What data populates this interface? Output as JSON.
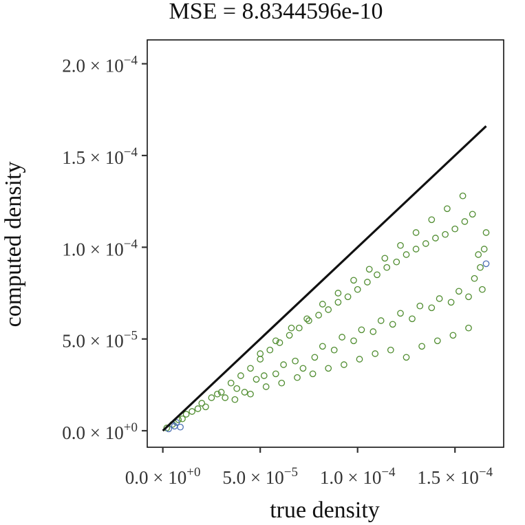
{
  "chart_data": {
    "type": "scatter",
    "title": "MSE = 8.8344596e-10",
    "xlabel": "true density",
    "ylabel": "computed density",
    "xlim": [
      -8e-06,
      0.000175
    ],
    "ylim": [
      -9e-06,
      0.000213
    ],
    "x_ticks": [
      {
        "value": 0,
        "mantissa": "0.0",
        "exponent": "+0"
      },
      {
        "value": 5e-05,
        "mantissa": "5.0",
        "exponent": "−5"
      },
      {
        "value": 0.0001,
        "mantissa": "1.0",
        "exponent": "−4"
      },
      {
        "value": 0.00015,
        "mantissa": "1.5",
        "exponent": "−4"
      }
    ],
    "y_ticks": [
      {
        "value": 0,
        "mantissa": "0.0",
        "exponent": "+0"
      },
      {
        "value": 5e-05,
        "mantissa": "5.0",
        "exponent": "−5"
      },
      {
        "value": 0.0001,
        "mantissa": "1.0",
        "exponent": "−4"
      },
      {
        "value": 0.00015,
        "mantissa": "1.5",
        "exponent": "−4"
      },
      {
        "value": 0.0002,
        "mantissa": "2.0",
        "exponent": "−4"
      }
    ],
    "reference_line": {
      "from": [
        0,
        0
      ],
      "to": [
        0.000166,
        0.000166
      ],
      "color": "#111111"
    },
    "series": [
      {
        "color": "#4f8c2f",
        "marker": "open-circle",
        "points": [
          [
            2e-06,
            1.5e-06
          ],
          [
            5e-06,
            3.5e-06
          ],
          [
            8e-06,
            6e-06
          ],
          [
            1e-05,
            6.5e-06
          ],
          [
            1.2e-05,
            9e-06
          ],
          [
            1.5e-05,
            1.05e-05
          ],
          [
            1.8e-05,
            1.2e-05
          ],
          [
            2e-05,
            1.5e-05
          ],
          [
            2.2e-05,
            1.3e-05
          ],
          [
            2.5e-05,
            1.8e-05
          ],
          [
            2.8e-05,
            2e-05
          ],
          [
            3e-05,
            2.1e-05
          ],
          [
            3.2e-05,
            1.8e-05
          ],
          [
            3.5e-05,
            2.6e-05
          ],
          [
            3.8e-05,
            2.3e-05
          ],
          [
            4e-05,
            3e-05
          ],
          [
            4.2e-05,
            2.1e-05
          ],
          [
            4.5e-05,
            3.4e-05
          ],
          [
            4.8e-05,
            2.8e-05
          ],
          [
            5e-05,
            3.9e-05
          ],
          [
            5.2e-05,
            3e-05
          ],
          [
            5.5e-05,
            4.4e-05
          ],
          [
            5.8e-05,
            3.1e-05
          ],
          [
            6e-05,
            4.8e-05
          ],
          [
            6.2e-05,
            3.6e-05
          ],
          [
            6.5e-05,
            5.2e-05
          ],
          [
            6.8e-05,
            3.8e-05
          ],
          [
            7e-05,
            5.6e-05
          ],
          [
            7.2e-05,
            3.4e-05
          ],
          [
            7.5e-05,
            6e-05
          ],
          [
            7.8e-05,
            4e-05
          ],
          [
            8e-05,
            6.3e-05
          ],
          [
            8.2e-05,
            4.6e-05
          ],
          [
            8.5e-05,
            6.6e-05
          ],
          [
            8.8e-05,
            4.4e-05
          ],
          [
            9e-05,
            7e-05
          ],
          [
            9.2e-05,
            5.1e-05
          ],
          [
            9.5e-05,
            7.3e-05
          ],
          [
            9.8e-05,
            4.9e-05
          ],
          [
            0.0001,
            7.7e-05
          ],
          [
            0.000102,
            5.5e-05
          ],
          [
            0.000105,
            8.1e-05
          ],
          [
            0.000108,
            5.4e-05
          ],
          [
            0.00011,
            8.5e-05
          ],
          [
            0.000112,
            6e-05
          ],
          [
            0.000115,
            8.9e-05
          ],
          [
            0.000118,
            5.8e-05
          ],
          [
            0.00012,
            9.2e-05
          ],
          [
            0.000122,
            6.4e-05
          ],
          [
            0.000125,
            9.6e-05
          ],
          [
            0.000128,
            6.1e-05
          ],
          [
            0.00013,
            9.9e-05
          ],
          [
            0.000132,
            6.8e-05
          ],
          [
            0.000135,
            0.000102
          ],
          [
            0.000138,
            6.7e-05
          ],
          [
            0.00014,
            0.000105
          ],
          [
            0.000142,
            7.2e-05
          ],
          [
            0.000145,
            0.000107
          ],
          [
            0.000148,
            7e-05
          ],
          [
            0.00015,
            0.00011
          ],
          [
            0.000152,
            7.6e-05
          ],
          [
            0.000155,
            0.000114
          ],
          [
            0.000157,
            7.3e-05
          ],
          [
            0.000159,
            0.000118
          ],
          [
            0.00016,
            8.3e-05
          ],
          [
            0.000162,
            9.6e-05
          ],
          [
            0.000163,
            8.9e-05
          ],
          [
            0.000164,
            7.7e-05
          ],
          [
            0.000165,
            9.9e-05
          ],
          [
            0.000166,
            0.000108
          ],
          [
            0.000154,
            0.000128
          ],
          [
            0.000146,
            0.000121
          ],
          [
            0.000138,
            0.000115
          ],
          [
            0.00013,
            0.000108
          ],
          [
            0.000122,
            0.000101
          ],
          [
            0.000114,
            9.4e-05
          ],
          [
            0.000106,
            8.8e-05
          ],
          [
            9.8e-05,
            8.2e-05
          ],
          [
            9e-05,
            7.5e-05
          ],
          [
            8.2e-05,
            6.9e-05
          ],
          [
            7.4e-05,
            6.1e-05
          ],
          [
            6.6e-05,
            5.6e-05
          ],
          [
            5.8e-05,
            4.9e-05
          ],
          [
            5e-05,
            4.2e-05
          ],
          [
            0.000157,
            5.6e-05
          ],
          [
            0.000149,
            5.2e-05
          ],
          [
            0.000141,
            4.9e-05
          ],
          [
            0.000133,
            4.6e-05
          ],
          [
            0.000125,
            4e-05
          ],
          [
            0.000117,
            4.4e-05
          ],
          [
            0.000109,
            4.2e-05
          ],
          [
            0.000101,
            3.9e-05
          ],
          [
            9.3e-05,
            3.6e-05
          ],
          [
            8.5e-05,
            3.4e-05
          ],
          [
            7.7e-05,
            3.1e-05
          ],
          [
            6.9e-05,
            2.9e-05
          ],
          [
            6.1e-05,
            2.6e-05
          ],
          [
            5.3e-05,
            2.4e-05
          ],
          [
            4.5e-05,
            2e-05
          ],
          [
            3.7e-05,
            1.7e-05
          ]
        ]
      },
      {
        "color": "#4b6fb2",
        "marker": "open-circle",
        "points": [
          [
            3e-06,
            1e-06
          ],
          [
            6e-06,
            2.5e-06
          ],
          [
            9e-06,
            2e-06
          ],
          [
            7e-06,
            4.5e-06
          ],
          [
            0.000166,
            9.1e-05
          ]
        ]
      }
    ]
  }
}
